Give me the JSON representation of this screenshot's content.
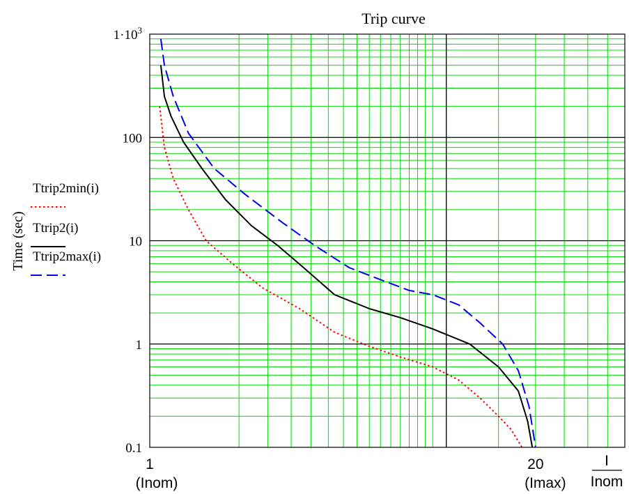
{
  "chart_data": {
    "type": "line",
    "title": "Trip curve",
    "ylabel": "Time (sec)",
    "x_scale": "log",
    "y_scale": "log",
    "xlim": [
      1,
      40
    ],
    "ylim": [
      0.1,
      1000
    ],
    "x_axis_label": {
      "numerator": "I",
      "denominator": "Inom"
    },
    "x_ticks": [
      {
        "value": 1,
        "label": "1",
        "sublabel": "(Inom)"
      },
      {
        "value": 20,
        "label": "20",
        "sublabel": "(Imax)"
      }
    ],
    "y_ticks": [
      {
        "value": 0.1,
        "label": "0.1"
      },
      {
        "value": 1,
        "label": "1"
      },
      {
        "value": 10,
        "label": "10"
      },
      {
        "value": 100,
        "label": "100"
      },
      {
        "value": 1000,
        "label_base": "1·10",
        "label_exp": "3"
      }
    ],
    "grid": {
      "minor": true,
      "major": true,
      "minor_color": "#00dd00",
      "major_color": "#000000"
    },
    "legend_position": "left",
    "series": [
      {
        "name": "Ttrip2min(i)",
        "color": "#ff0000",
        "dash": "dotted",
        "points": [
          [
            1.08,
            200
          ],
          [
            1.12,
            80
          ],
          [
            1.2,
            40
          ],
          [
            1.35,
            20
          ],
          [
            1.55,
            10
          ],
          [
            1.9,
            6
          ],
          [
            2.4,
            3.5
          ],
          [
            3.2,
            2.2
          ],
          [
            4.2,
            1.3
          ],
          [
            5.5,
            0.95
          ],
          [
            7,
            0.75
          ],
          [
            9,
            0.6
          ],
          [
            11,
            0.45
          ],
          [
            13,
            0.3
          ],
          [
            15,
            0.2
          ],
          [
            16.5,
            0.15
          ],
          [
            18,
            0.1
          ]
        ]
      },
      {
        "name": "Ttrip2(i)",
        "color": "#000000",
        "dash": "solid",
        "points": [
          [
            1.09,
            500
          ],
          [
            1.12,
            250
          ],
          [
            1.18,
            160
          ],
          [
            1.3,
            90
          ],
          [
            1.5,
            50
          ],
          [
            1.8,
            25
          ],
          [
            2.2,
            14
          ],
          [
            2.7,
            9
          ],
          [
            3.3,
            5.5
          ],
          [
            4.2,
            3
          ],
          [
            5.5,
            2.2
          ],
          [
            7,
            1.8
          ],
          [
            9,
            1.4
          ],
          [
            12,
            1.0
          ],
          [
            15,
            0.6
          ],
          [
            17.5,
            0.35
          ],
          [
            18.8,
            0.18
          ],
          [
            19.5,
            0.1
          ]
        ]
      },
      {
        "name": "Ttrip2max(i)",
        "color": "#0000ee",
        "dash": "dashed",
        "points": [
          [
            1.09,
            900
          ],
          [
            1.12,
            500
          ],
          [
            1.2,
            250
          ],
          [
            1.35,
            110
          ],
          [
            1.65,
            50
          ],
          [
            2.1,
            28
          ],
          [
            2.8,
            15
          ],
          [
            3.6,
            9
          ],
          [
            4.7,
            5.5
          ],
          [
            6,
            4.2
          ],
          [
            7.5,
            3.3
          ],
          [
            9,
            3.0
          ],
          [
            11,
            2.4
          ],
          [
            13,
            1.6
          ],
          [
            15.5,
            1.0
          ],
          [
            17.5,
            0.55
          ],
          [
            19,
            0.25
          ],
          [
            20,
            0.1
          ]
        ]
      }
    ]
  }
}
